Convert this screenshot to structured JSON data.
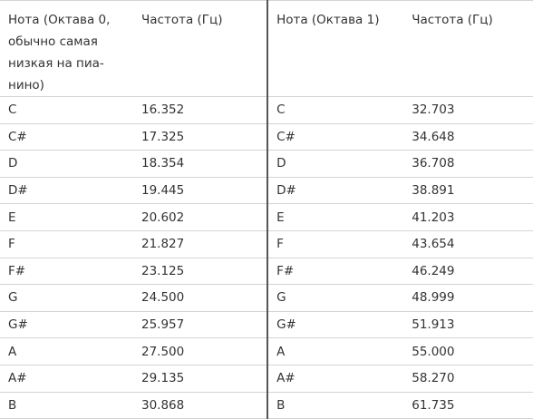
{
  "table": {
    "header": [
      [
        "Нота (Октава 0,",
        "обычно самая",
        "низкая на пиа-",
        "нино)"
      ],
      "Частота (Гц)",
      "Нота (Октава 1)",
      "Частота (Гц)"
    ],
    "rows": [
      [
        "C",
        "16.352",
        "C",
        "32.703"
      ],
      [
        "C#",
        "17.325",
        "C#",
        "34.648"
      ],
      [
        "D",
        "18.354",
        "D",
        "36.708"
      ],
      [
        "D#",
        "19.445",
        "D#",
        "38.891"
      ],
      [
        "E",
        "20.602",
        "E",
        "41.203"
      ],
      [
        "F",
        "21.827",
        "F",
        "43.654"
      ],
      [
        "F#",
        "23.125",
        "F#",
        "46.249"
      ],
      [
        "G",
        "24.500",
        "G",
        "48.999"
      ],
      [
        "G#",
        "25.957",
        "G#",
        "51.913"
      ],
      [
        "A",
        "27.500",
        "A",
        "55.000"
      ],
      [
        "A#",
        "29.135",
        "A#",
        "58.270"
      ],
      [
        "B",
        "30.868",
        "B",
        "61.735"
      ]
    ]
  }
}
